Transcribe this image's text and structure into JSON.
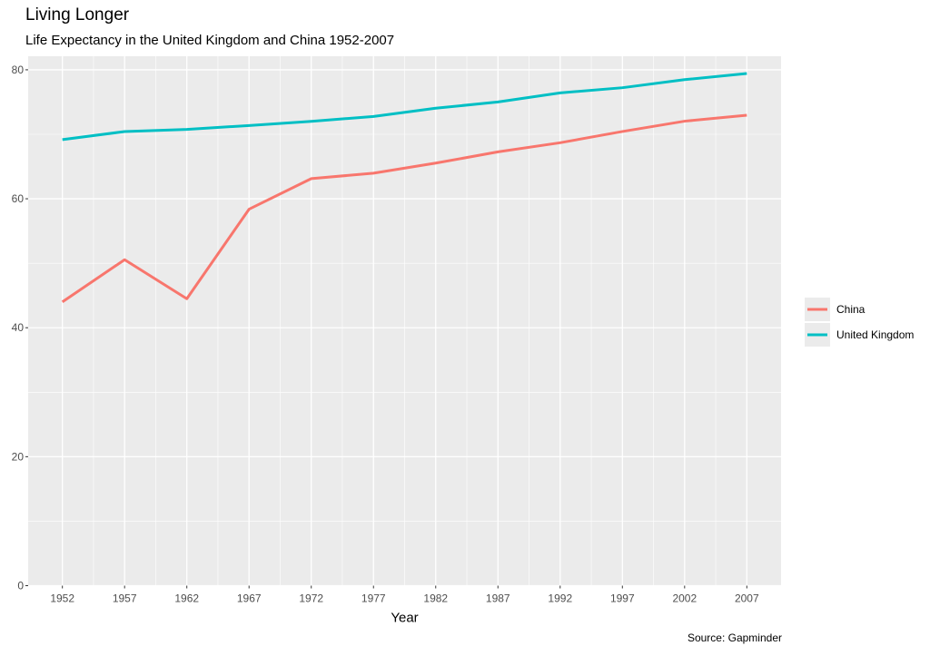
{
  "chart_data": {
    "type": "line",
    "title": "Living Longer",
    "subtitle": "Life Expectancy in the United Kingdom and China 1952-2007",
    "caption": "Source: Gapminder",
    "xlabel": "Year",
    "ylabel": "",
    "x": [
      1952,
      1957,
      1962,
      1967,
      1972,
      1977,
      1982,
      1987,
      1992,
      1997,
      2002,
      2007
    ],
    "x_ticks": [
      "1952",
      "1957",
      "1962",
      "1967",
      "1972",
      "1977",
      "1982",
      "1987",
      "1992",
      "1997",
      "2002",
      "2007"
    ],
    "y_ticks": [
      "0",
      "20",
      "40",
      "60",
      "80"
    ],
    "xlim": [
      1949.25,
      2009.75
    ],
    "ylim": [
      0,
      82.1
    ],
    "grid": true,
    "legend_position": "right",
    "series": [
      {
        "name": "China",
        "color": "#F8766D",
        "values": [
          44.0,
          50.55,
          44.5,
          58.38,
          63.12,
          63.97,
          65.53,
          67.27,
          68.69,
          70.43,
          72.03,
          72.96
        ]
      },
      {
        "name": "United Kingdom",
        "color": "#00BFC4",
        "values": [
          69.18,
          70.42,
          70.76,
          71.36,
          72.01,
          72.76,
          74.04,
          75.01,
          76.42,
          77.22,
          78.47,
          79.43
        ]
      }
    ]
  }
}
